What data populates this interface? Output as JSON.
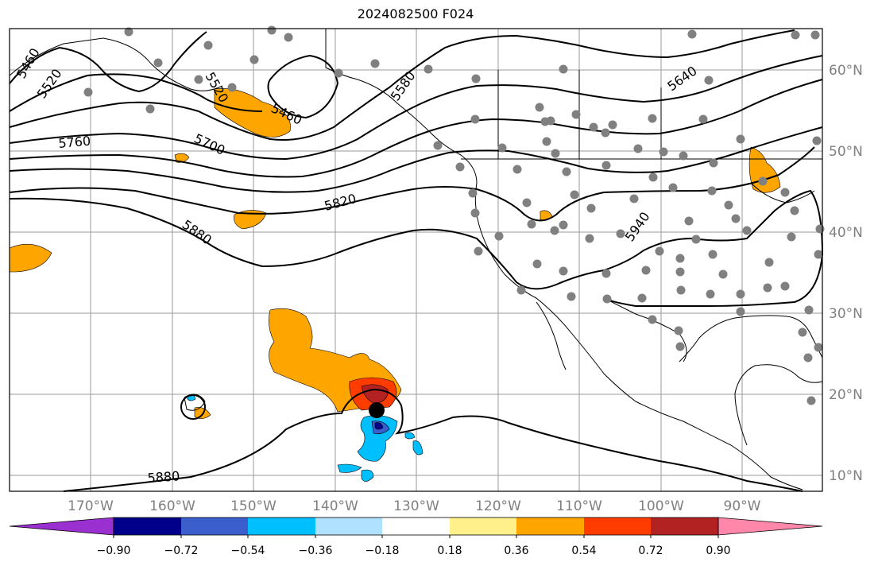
{
  "title": "2024082500 F024",
  "map": {
    "lat_labels": [
      "60°N",
      "50°N",
      "40°N",
      "30°N",
      "20°N",
      "10°N"
    ],
    "lon_labels": [
      "170°W",
      "160°W",
      "150°W",
      "140°W",
      "130°W",
      "120°W",
      "110°W",
      "100°W",
      "90°W"
    ],
    "contour_labels": [
      "5460",
      "5520",
      "5520",
      "5460",
      "5580",
      "5640",
      "5760",
      "5700",
      "5820",
      "5880",
      "5940",
      "5880"
    ]
  },
  "colorbar": {
    "colors": [
      "#9b30d0",
      "#00008b",
      "#3a5fcd",
      "#00bfff",
      "#b0e2ff",
      "#ffffff",
      "#fff08c",
      "#ffa500",
      "#ff3c00",
      "#b22222",
      "#ff88aa"
    ],
    "tick_labels": [
      "−0.90",
      "−0.72",
      "−0.54",
      "−0.36",
      "−0.18",
      "0.18",
      "0.36",
      "0.54",
      "0.72",
      "0.90"
    ]
  },
  "colors": {
    "stations": "#808080",
    "contours": "#000000",
    "grid": "#9a9a9a"
  }
}
